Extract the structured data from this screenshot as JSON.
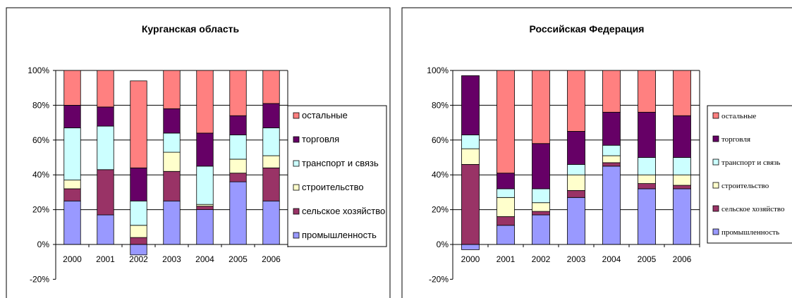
{
  "colors": {
    "промышленность": "#9999ff",
    "сельское хозяйство": "#993366",
    "строительство": "#ffffcc",
    "транспорт и связь": "#ccffff",
    "торговля": "#660066",
    "остальные": "#ff8080"
  },
  "chart_data": [
    {
      "type": "bar",
      "stacked": true,
      "title": "Курганская область",
      "categories": [
        "2000",
        "2001",
        "2002",
        "2003",
        "2004",
        "2005",
        "2006"
      ],
      "ylim": [
        -20,
        100
      ],
      "yticks": [
        "-20%",
        "0%",
        "20%",
        "40%",
        "60%",
        "80%",
        "100%"
      ],
      "grid": true,
      "legend_position": "right",
      "series": [
        {
          "name": "промышленность",
          "values": [
            25,
            17,
            -6,
            25,
            20,
            36,
            25
          ]
        },
        {
          "name": "сельское хозяйство",
          "values": [
            7,
            26,
            4,
            17,
            2,
            5,
            19
          ]
        },
        {
          "name": "строительство",
          "values": [
            5,
            0,
            7,
            11,
            1,
            8,
            7
          ]
        },
        {
          "name": "транспорт и связь",
          "values": [
            30,
            25,
            14,
            11,
            22,
            14,
            16
          ]
        },
        {
          "name": "торговля",
          "values": [
            13,
            11,
            19,
            14,
            19,
            11,
            14
          ]
        },
        {
          "name": "остальные",
          "values": [
            20,
            21,
            50,
            22,
            36,
            26,
            19
          ]
        }
      ]
    },
    {
      "type": "bar",
      "stacked": true,
      "title": "Российская Федерация",
      "categories": [
        "2000",
        "2001",
        "2002",
        "2003",
        "2004",
        "2005",
        "2006"
      ],
      "ylim": [
        -20,
        100
      ],
      "yticks": [
        "-20%",
        "0%",
        "20%",
        "40%",
        "60%",
        "80%",
        "100%"
      ],
      "grid": true,
      "legend_position": "right",
      "series": [
        {
          "name": "промышленность",
          "values": [
            -3,
            11,
            17,
            27,
            45,
            32,
            32
          ]
        },
        {
          "name": "сельское хозяйство",
          "values": [
            46,
            5,
            2,
            4,
            2,
            3,
            2
          ]
        },
        {
          "name": "строительство",
          "values": [
            9,
            11,
            5,
            9,
            4,
            5,
            6
          ]
        },
        {
          "name": "транспорт и связь",
          "values": [
            8,
            5,
            8,
            6,
            6,
            10,
            10
          ]
        },
        {
          "name": "торговля",
          "values": [
            34,
            9,
            26,
            19,
            19,
            26,
            24
          ]
        },
        {
          "name": "остальные",
          "values": [
            0,
            59,
            42,
            35,
            24,
            24,
            26
          ]
        }
      ]
    }
  ]
}
